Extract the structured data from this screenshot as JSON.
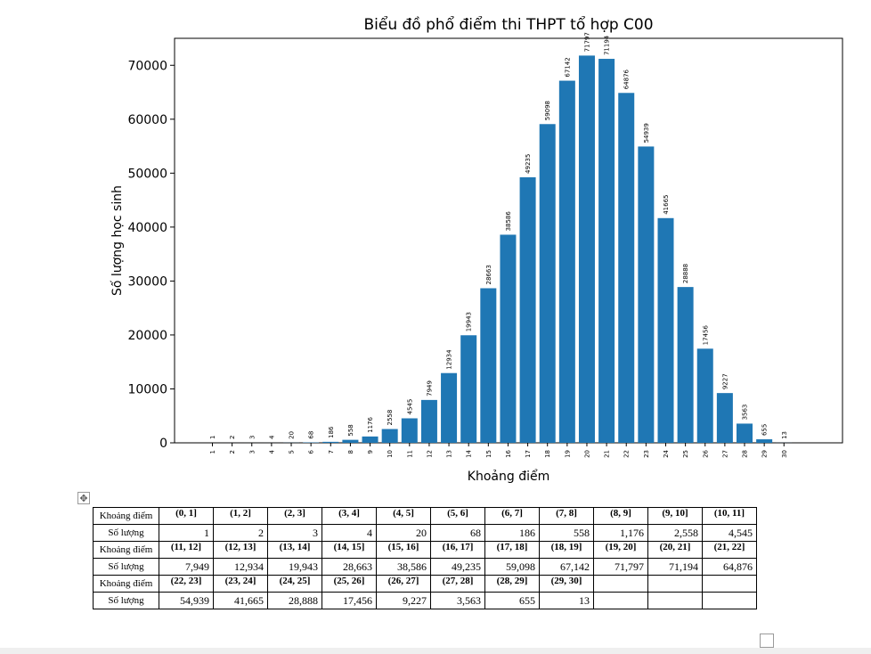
{
  "chart_data": {
    "type": "bar",
    "title": "Biểu đồ phổ điểm thi THPT tổ hợp C00",
    "xlabel": "Khoảng điểm",
    "ylabel": "Số lượng học sinh",
    "categories": [
      "1",
      "2",
      "3",
      "4",
      "5",
      "6",
      "7",
      "8",
      "9",
      "10",
      "11",
      "12",
      "13",
      "14",
      "15",
      "16",
      "17",
      "18",
      "19",
      "20",
      "21",
      "22",
      "23",
      "24",
      "25",
      "26",
      "27",
      "28",
      "29",
      "30"
    ],
    "values": [
      1,
      2,
      3,
      4,
      20,
      68,
      186,
      558,
      1176,
      2558,
      4545,
      7949,
      12934,
      19943,
      28663,
      38586,
      49235,
      59098,
      67142,
      71797,
      71194,
      64876,
      54939,
      41665,
      28888,
      17456,
      9227,
      3563,
      655,
      13
    ],
    "value_labels": [
      "1",
      "2",
      "3",
      "4",
      "20",
      "68",
      "186",
      "558",
      "1176",
      "2558",
      "4545",
      "7949",
      "12934",
      "19943",
      "28663",
      "38586",
      "49235",
      "59098",
      "67142",
      "71797",
      "71194",
      "64876",
      "54939",
      "41665",
      "28888",
      "17456",
      "9227",
      "3563",
      "655",
      "13"
    ],
    "yticks": [
      0,
      10000,
      20000,
      30000,
      40000,
      50000,
      60000,
      70000
    ],
    "ylim": [
      0,
      75000
    ],
    "bar_color": "#1f77b4",
    "grid": false
  },
  "table": {
    "label_interval": "Khoảng điểm",
    "label_count": "Số lượng",
    "groups": [
      {
        "intervals": [
          "(0, 1]",
          "(1, 2]",
          "(2, 3]",
          "(3, 4]",
          "(4, 5]",
          "(5, 6]",
          "(6, 7]",
          "(7, 8]",
          "(8, 9]",
          "(9, 10]",
          "(10, 11]"
        ],
        "counts": [
          "1",
          "2",
          "3",
          "4",
          "20",
          "68",
          "186",
          "558",
          "1,176",
          "2,558",
          "4,545"
        ]
      },
      {
        "intervals": [
          "(11, 12]",
          "(12, 13]",
          "(13, 14]",
          "(14, 15]",
          "(15, 16]",
          "(16, 17]",
          "(17, 18]",
          "(18, 19]",
          "(19, 20]",
          "(20, 21]",
          "(21, 22]"
        ],
        "counts": [
          "7,949",
          "12,934",
          "19,943",
          "28,663",
          "38,586",
          "49,235",
          "59,098",
          "67,142",
          "71,797",
          "71,194",
          "64,876"
        ]
      },
      {
        "intervals": [
          "(22, 23]",
          "(23, 24]",
          "(24, 25]",
          "(25, 26]",
          "(26, 27]",
          "(27, 28]",
          "(28, 29]",
          "(29, 30]",
          "",
          "",
          ""
        ],
        "counts": [
          "54,939",
          "41,665",
          "28,888",
          "17,456",
          "9,227",
          "3,563",
          "655",
          "13",
          "",
          "",
          ""
        ]
      }
    ]
  },
  "icons": {
    "move_handle": "move-icon",
    "move_glyph": "✥"
  }
}
